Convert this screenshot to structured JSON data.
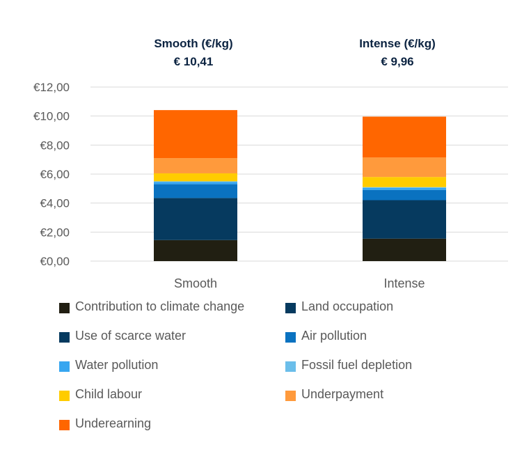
{
  "header": {
    "smooth_title": "Smooth (€/kg)",
    "smooth_total": "€ 10,41",
    "intense_title": "Intense (€/kg)",
    "intense_total": "€ 9,96"
  },
  "chart_data": {
    "type": "bar",
    "stacked": true,
    "categories": [
      "Smooth",
      "Intense"
    ],
    "ylim": [
      0,
      12
    ],
    "yticks": [
      0,
      2,
      4,
      6,
      8,
      10,
      12
    ],
    "ytick_labels": [
      "€0,00",
      "€2,00",
      "€4,00",
      "€6,00",
      "€8,00",
      "€10,00",
      "€12,00"
    ],
    "grid": true,
    "legend_position": "bottom",
    "series": [
      {
        "name": "Contribution to climate change",
        "color": "#211f12",
        "values": [
          1.45,
          1.55
        ]
      },
      {
        "name": "Land occupation",
        "color": "#063a5f",
        "values": [
          2.9,
          2.65
        ]
      },
      {
        "name": "Use of scarce water",
        "color": "#063a5f",
        "values": [
          0.0,
          0.0
        ]
      },
      {
        "name": "Air pollution",
        "color": "#0a72c0",
        "values": [
          0.95,
          0.7
        ]
      },
      {
        "name": "Water pollution",
        "color": "#37a6f0",
        "values": [
          0.15,
          0.15
        ]
      },
      {
        "name": "Fossil fuel depletion",
        "color": "#6bbeea",
        "values": [
          0.05,
          0.05
        ]
      },
      {
        "name": "Child labour",
        "color": "#ffcc00",
        "values": [
          0.55,
          0.7
        ]
      },
      {
        "name": "Underpayment",
        "color": "#ff9a3c",
        "values": [
          1.05,
          1.35
        ]
      },
      {
        "name": "Underearning",
        "color": "#ff6600",
        "values": [
          3.31,
          2.81
        ]
      }
    ]
  }
}
